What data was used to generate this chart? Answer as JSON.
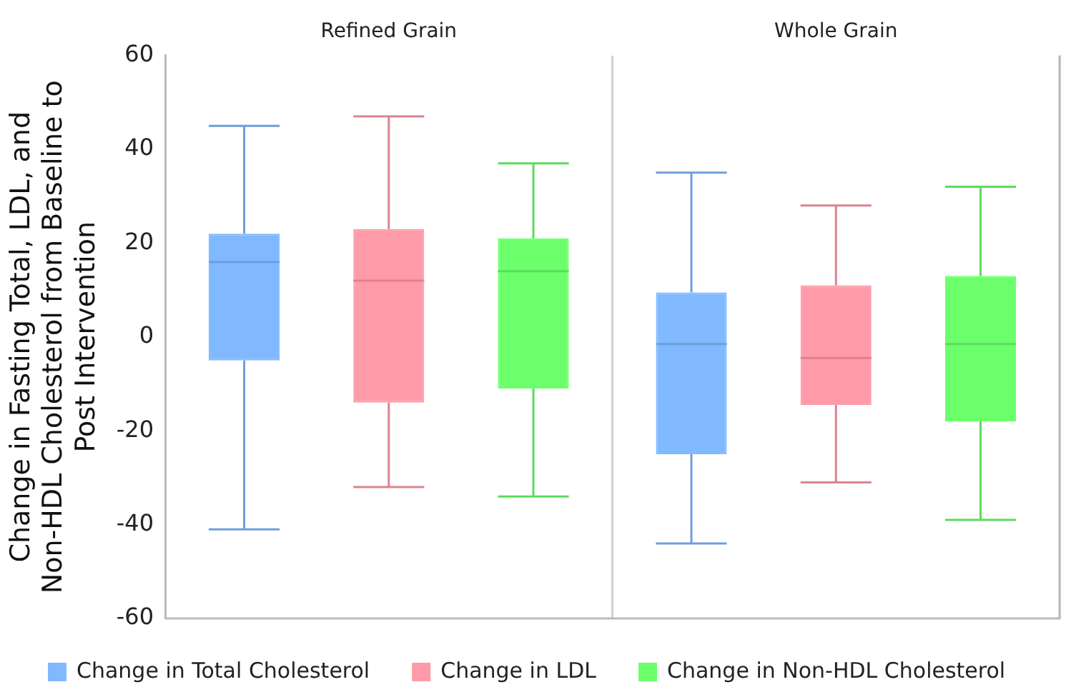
{
  "chart_data": {
    "type": "box",
    "ylabel": "Change in Fasting Total, LDL, and Non-HDL Cholesterol from Baseline to Post Intervention",
    "categories": [
      "Refined Grain",
      "Whole Grain"
    ],
    "ylim": [
      -60,
      60
    ],
    "yticks": [
      -60,
      -40,
      -20,
      0,
      20,
      40,
      60
    ],
    "legend": "bottom",
    "grid": false,
    "series": [
      {
        "name": "Change in Total Cholesterol",
        "color": "#80b9ff",
        "boxes": [
          {
            "low": -41,
            "q1": -5,
            "median": 16,
            "q3": 22,
            "high": 45
          },
          {
            "low": -44,
            "q1": -25,
            "median": -1.5,
            "q3": 9.5,
            "high": 35
          }
        ]
      },
      {
        "name": "Change in LDL",
        "color": "#ff9aa8",
        "boxes": [
          {
            "low": -32,
            "q1": -14,
            "median": 12,
            "q3": 23,
            "high": 47
          },
          {
            "low": -31,
            "q1": -14.5,
            "median": -4.5,
            "q3": 11,
            "high": 28
          }
        ]
      },
      {
        "name": "Change in Non-HDL Cholesterol",
        "color": "#6bff6b",
        "boxes": [
          {
            "low": -34,
            "q1": -11,
            "median": 14,
            "q3": 21,
            "high": 37
          },
          {
            "low": -39,
            "q1": -18,
            "median": -1.5,
            "q3": 13,
            "high": 32
          }
        ]
      }
    ]
  }
}
